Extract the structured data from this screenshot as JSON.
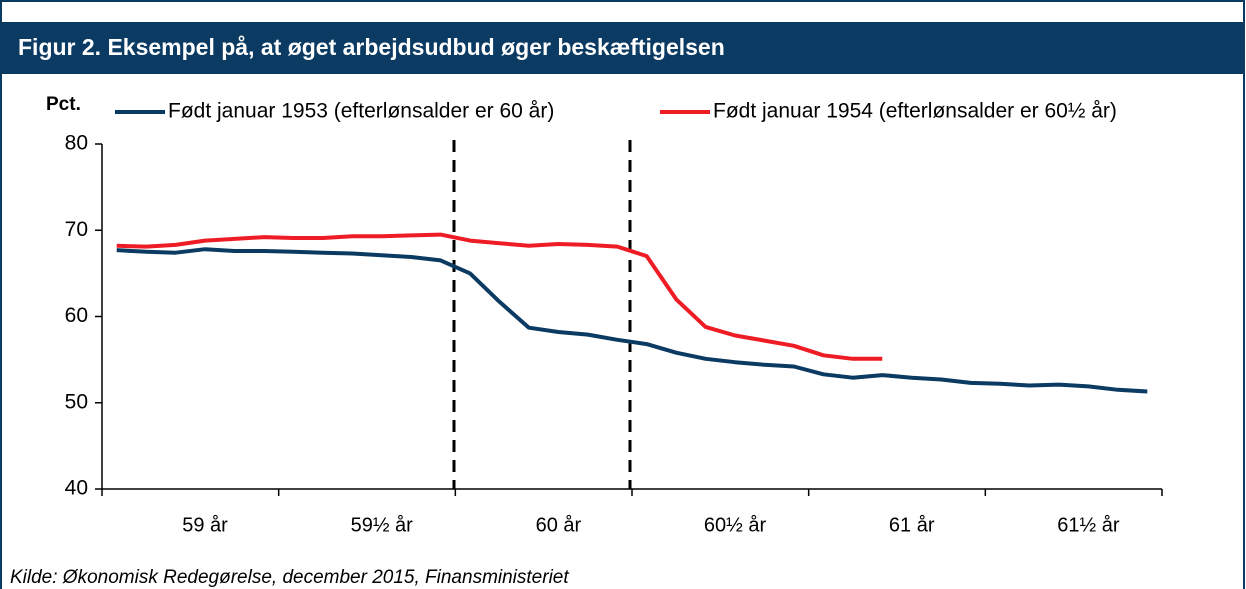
{
  "chart_data": {
    "type": "line",
    "title": "Figur 2. Eksempel på, at øget arbejdsudbud øger beskæftigelsen",
    "y_label": "Pct.",
    "source": "Kilde: Økonomisk Redegørelse, december 2015, Finansministeriet",
    "categories": [
      null,
      null,
      null,
      "59 år",
      null,
      null,
      null,
      null,
      null,
      "59½ år",
      null,
      null,
      null,
      null,
      null,
      "60 år",
      null,
      null,
      null,
      null,
      null,
      "60½ år",
      null,
      null,
      null,
      null,
      null,
      "61 år",
      null,
      null,
      null,
      null,
      null,
      "61½ år",
      null,
      null
    ],
    "series": [
      {
        "name": "Født januar 1953 (efterlønsalder er 60 år)",
        "color": "#0b3a62",
        "values": [
          67.7,
          67.5,
          67.4,
          67.8,
          67.6,
          67.6,
          67.5,
          67.4,
          67.3,
          67.1,
          66.9,
          66.5,
          65.0,
          61.7,
          58.7,
          58.2,
          57.9,
          57.3,
          56.8,
          55.8,
          55.1,
          54.7,
          54.4,
          54.2,
          53.3,
          52.9,
          53.2,
          52.9,
          52.7,
          52.3,
          52.2,
          52.0,
          52.1,
          51.9,
          51.5,
          51.3
        ]
      },
      {
        "name": "Født januar 1954 (efterlønsalder er 60½ år)",
        "color": "#ee1c25",
        "values": [
          68.2,
          68.1,
          68.3,
          68.8,
          69.0,
          69.2,
          69.1,
          69.1,
          69.3,
          69.3,
          69.4,
          69.5,
          68.8,
          68.5,
          68.2,
          68.4,
          68.3,
          68.1,
          67.0,
          62.0,
          58.8,
          57.8,
          57.2,
          56.6,
          55.5,
          55.1,
          55.1,
          null,
          null,
          null,
          null,
          null,
          null,
          null,
          null,
          null
        ]
      }
    ],
    "ylim": [
      40,
      80
    ],
    "yticks": [
      40,
      50,
      60,
      70,
      80
    ]
  }
}
